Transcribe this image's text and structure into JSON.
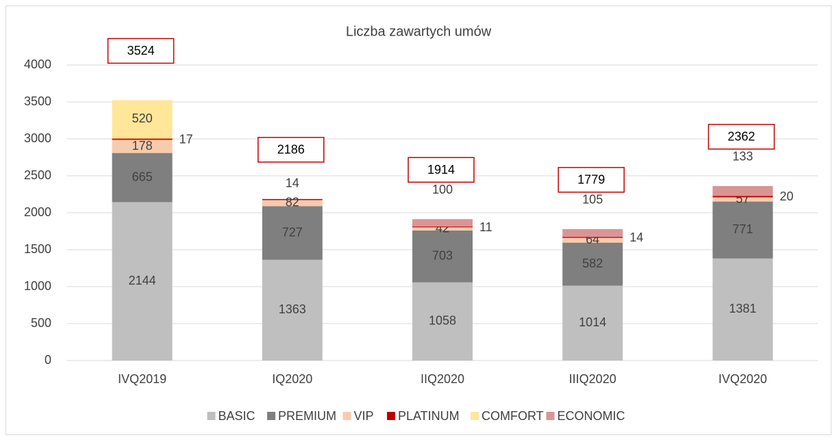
{
  "chart_data": {
    "type": "stacked_bar",
    "title": "Liczba zawartych umów",
    "categories": [
      "IVQ2019",
      "IQ2020",
      "IIQ2020",
      "IIIQ2020",
      "IVQ2020"
    ],
    "series": [
      {
        "name": "BASIC",
        "color": "#bfbfbf",
        "values": [
          2144,
          1363,
          1058,
          1014,
          1381
        ]
      },
      {
        "name": "PREMIUM",
        "color": "#7f7f7f",
        "values": [
          665,
          727,
          703,
          582,
          771
        ]
      },
      {
        "name": "VIP",
        "color": "#f8cbad",
        "values": [
          178,
          82,
          42,
          64,
          57
        ]
      },
      {
        "name": "PLATINUM",
        "color": "#c00000",
        "values": [
          17,
          14,
          11,
          14,
          20
        ]
      },
      {
        "name": "COMFORT",
        "color": "#ffe699",
        "values": [
          520,
          null,
          null,
          null,
          null
        ]
      },
      {
        "name": "ECONOMIC",
        "color": "#d99594",
        "values": [
          null,
          null,
          100,
          105,
          133
        ]
      }
    ],
    "totals": [
      3524,
      2186,
      1914,
      1779,
      2362
    ],
    "ylim": [
      0,
      4000
    ],
    "yticks": [
      0,
      500,
      1000,
      1500,
      2000,
      2500,
      3000,
      3500,
      4000
    ],
    "grid": true,
    "legend": "bottom"
  }
}
